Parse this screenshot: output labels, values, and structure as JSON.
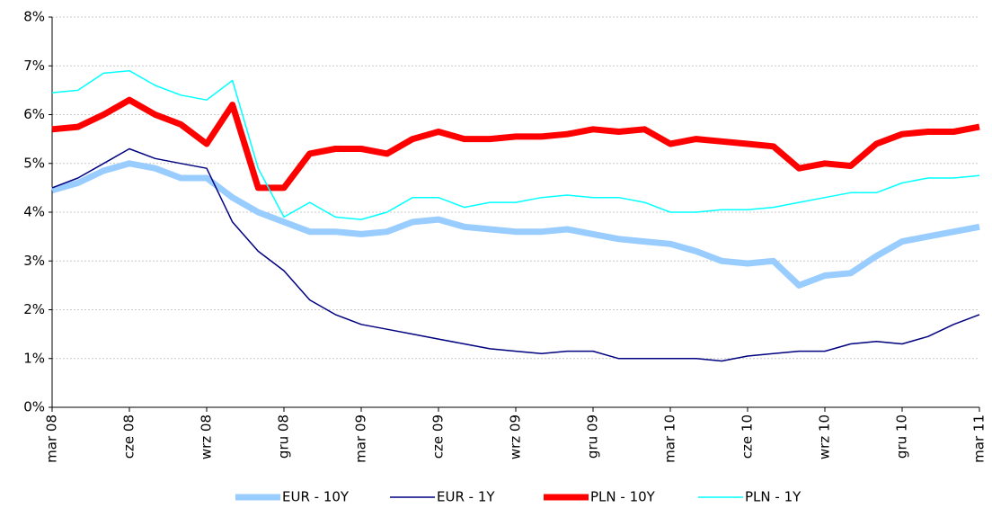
{
  "chart_data": {
    "type": "line",
    "categories": [
      "mar 08",
      null,
      null,
      "cze 08",
      null,
      null,
      "wrz 08",
      null,
      null,
      "gru 08",
      null,
      null,
      "mar 09",
      null,
      null,
      "cze 09",
      null,
      null,
      "wrz 09",
      null,
      null,
      "gru 09",
      null,
      null,
      "mar 10",
      null,
      null,
      "cze 10",
      null,
      null,
      "wrz 10",
      null,
      null,
      "gru 10",
      null,
      null,
      "mar 11"
    ],
    "series": [
      {
        "name": "EUR - 10Y",
        "color": "#99ccff",
        "width": 7,
        "values": [
          4.45,
          4.6,
          4.85,
          5.0,
          4.9,
          4.7,
          4.7,
          4.3,
          4.0,
          3.8,
          3.6,
          3.6,
          3.55,
          3.6,
          3.8,
          3.85,
          3.7,
          3.65,
          3.6,
          3.6,
          3.65,
          3.55,
          3.45,
          3.4,
          3.35,
          3.2,
          3.0,
          2.95,
          3.0,
          2.5,
          2.7,
          2.75,
          3.1,
          3.4,
          3.5,
          3.6,
          3.7
        ]
      },
      {
        "name": "EUR - 1Y",
        "color": "#000080",
        "width": 1.5,
        "values": [
          4.5,
          4.7,
          5.0,
          5.3,
          5.1,
          5.0,
          4.9,
          3.8,
          3.2,
          2.8,
          2.2,
          1.9,
          1.7,
          1.6,
          1.5,
          1.4,
          1.3,
          1.2,
          1.15,
          1.1,
          1.15,
          1.15,
          1.0,
          1.0,
          1.0,
          1.0,
          0.95,
          1.05,
          1.1,
          1.15,
          1.15,
          1.3,
          1.35,
          1.3,
          1.45,
          1.7,
          1.9
        ]
      },
      {
        "name": "PLN - 10Y",
        "color": "#ff0000",
        "width": 7,
        "values": [
          5.7,
          5.75,
          6.0,
          6.3,
          6.0,
          5.8,
          5.4,
          6.2,
          4.5,
          4.5,
          5.2,
          5.3,
          5.3,
          5.2,
          5.5,
          5.65,
          5.5,
          5.5,
          5.55,
          5.55,
          5.6,
          5.7,
          5.65,
          5.7,
          5.4,
          5.5,
          5.45,
          5.4,
          5.35,
          4.9,
          5.0,
          4.95,
          5.4,
          5.6,
          5.65,
          5.65,
          5.75
        ]
      },
      {
        "name": "PLN - 1Y",
        "color": "#00ffff",
        "width": 1.5,
        "values": [
          6.45,
          6.5,
          6.85,
          6.9,
          6.6,
          6.4,
          6.3,
          6.7,
          4.9,
          3.9,
          4.2,
          3.9,
          3.85,
          4.0,
          4.3,
          4.3,
          4.1,
          4.2,
          4.2,
          4.3,
          4.35,
          4.3,
          4.3,
          4.2,
          4.0,
          4.0,
          4.05,
          4.05,
          4.1,
          4.2,
          4.3,
          4.4,
          4.4,
          4.6,
          4.7,
          4.7,
          4.75
        ]
      }
    ],
    "ylim": [
      0,
      8
    ],
    "yticks": [
      {
        "value": 0,
        "label": "0%"
      },
      {
        "value": 1,
        "label": "1%"
      },
      {
        "value": 2,
        "label": "2%"
      },
      {
        "value": 3,
        "label": "3%"
      },
      {
        "value": 4,
        "label": "4%"
      },
      {
        "value": 5,
        "label": "5%"
      },
      {
        "value": 6,
        "label": "6%"
      },
      {
        "value": 7,
        "label": "7%"
      },
      {
        "value": 8,
        "label": "8%"
      }
    ],
    "grid": true,
    "legend": "bottom"
  }
}
